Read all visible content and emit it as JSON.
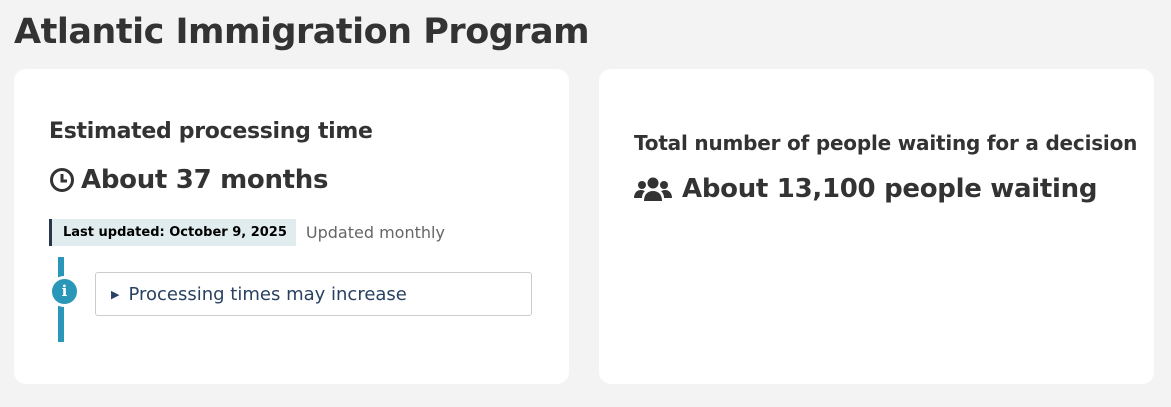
{
  "page": {
    "title": "Atlantic Immigration Program"
  },
  "processing": {
    "heading": "Estimated processing time",
    "value": "About 37 months",
    "icon": "clock-icon",
    "last_updated": "Last updated: October 9, 2025",
    "frequency": "Updated monthly",
    "notice": "Processing times may increase",
    "notice_icon": "info-icon",
    "info_letter": "i"
  },
  "waiting": {
    "heading": "Total number of people waiting for a decision",
    "value": "About 13,100 people waiting",
    "icon": "users-icon"
  },
  "colors": {
    "accent": "#2a96b8",
    "link": "#284162",
    "badge_bg": "#e1ecef"
  }
}
